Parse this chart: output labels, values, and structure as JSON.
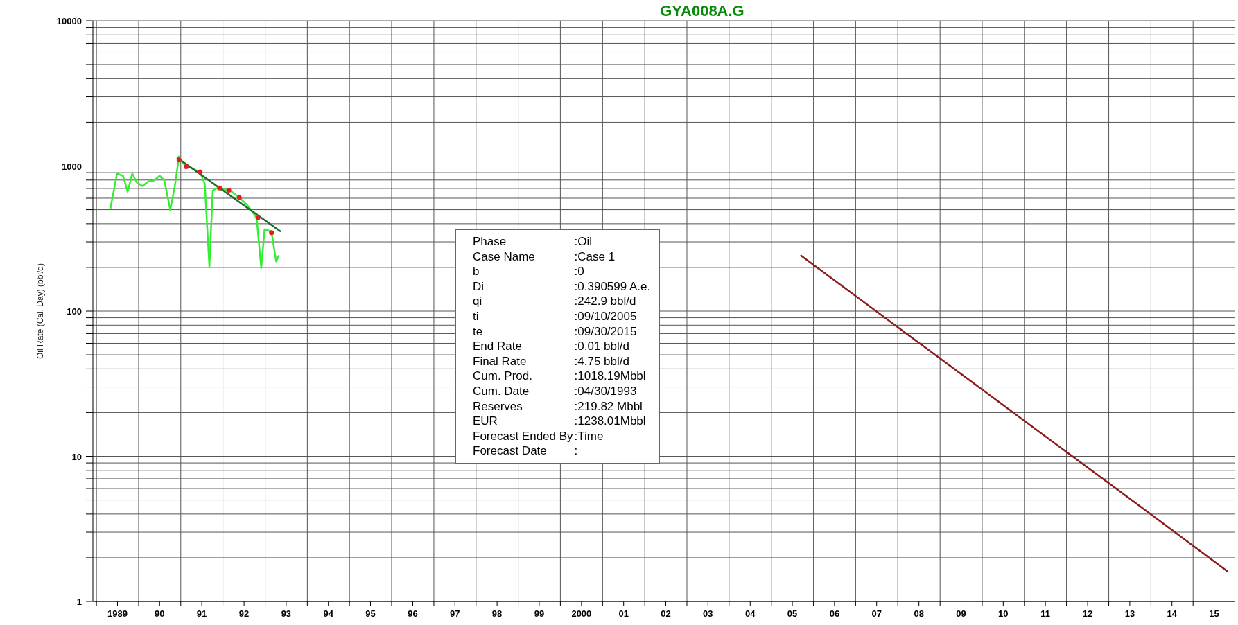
{
  "chart_data": {
    "type": "line",
    "title": "GYA008A.G",
    "ylabel": "Oil Rate (Cal. Day) (bbl/d)",
    "log": "y",
    "grid": true,
    "xlim": [
      "1988-12-01",
      "2016-01-01"
    ],
    "ylim": [
      1,
      10000
    ],
    "xticks": [
      {
        "value": "1989-01-01",
        "label": null
      },
      {
        "value": "1989-07-02",
        "label": "1989"
      },
      {
        "value": "1990-01-01",
        "label": null
      },
      {
        "value": "1990-07-02",
        "label": "90"
      },
      {
        "value": "1991-01-01",
        "label": null
      },
      {
        "value": "1991-07-02",
        "label": "91"
      },
      {
        "value": "1992-01-01",
        "label": null
      },
      {
        "value": "1992-07-02",
        "label": "92"
      },
      {
        "value": "1993-01-01",
        "label": null
      },
      {
        "value": "1993-07-02",
        "label": "93"
      },
      {
        "value": "1994-01-01",
        "label": null
      },
      {
        "value": "1994-07-02",
        "label": "94"
      },
      {
        "value": "1995-01-01",
        "label": null
      },
      {
        "value": "1995-07-02",
        "label": "95"
      },
      {
        "value": "1996-01-01",
        "label": null
      },
      {
        "value": "1996-07-02",
        "label": "96"
      },
      {
        "value": "1997-01-01",
        "label": null
      },
      {
        "value": "1997-07-02",
        "label": "97"
      },
      {
        "value": "1998-01-01",
        "label": null
      },
      {
        "value": "1998-07-02",
        "label": "98"
      },
      {
        "value": "1999-01-01",
        "label": null
      },
      {
        "value": "1999-07-02",
        "label": "99"
      },
      {
        "value": "2000-01-01",
        "label": null
      },
      {
        "value": "2000-07-02",
        "label": "2000"
      },
      {
        "value": "2001-01-01",
        "label": null
      },
      {
        "value": "2001-07-02",
        "label": "01"
      },
      {
        "value": "2002-01-01",
        "label": null
      },
      {
        "value": "2002-07-02",
        "label": "02"
      },
      {
        "value": "2003-01-01",
        "label": null
      },
      {
        "value": "2003-07-02",
        "label": "03"
      },
      {
        "value": "2004-01-01",
        "label": null
      },
      {
        "value": "2004-07-02",
        "label": "04"
      },
      {
        "value": "2005-01-01",
        "label": null
      },
      {
        "value": "2005-07-02",
        "label": "05"
      },
      {
        "value": "2006-01-01",
        "label": null
      },
      {
        "value": "2006-07-02",
        "label": "06"
      },
      {
        "value": "2007-01-01",
        "label": null
      },
      {
        "value": "2007-07-02",
        "label": "07"
      },
      {
        "value": "2008-01-01",
        "label": null
      },
      {
        "value": "2008-07-02",
        "label": "08"
      },
      {
        "value": "2009-01-01",
        "label": null
      },
      {
        "value": "2009-07-02",
        "label": "09"
      },
      {
        "value": "2010-01-01",
        "label": null
      },
      {
        "value": "2010-07-02",
        "label": "10"
      },
      {
        "value": "2011-01-01",
        "label": null
      },
      {
        "value": "2011-07-02",
        "label": "11"
      },
      {
        "value": "2012-01-01",
        "label": null
      },
      {
        "value": "2012-07-02",
        "label": "12"
      },
      {
        "value": "2013-01-01",
        "label": null
      },
      {
        "value": "2013-07-02",
        "label": "13"
      },
      {
        "value": "2014-01-01",
        "label": null
      },
      {
        "value": "2014-07-02",
        "label": "14"
      },
      {
        "value": "2015-01-01",
        "label": null
      },
      {
        "value": "2015-07-02",
        "label": "15"
      }
    ],
    "yticks": [
      1,
      {
        "value": 2,
        "label": null
      },
      {
        "value": 3,
        "label": null
      },
      {
        "value": 4,
        "label": null
      },
      {
        "value": 5,
        "label": null
      },
      {
        "value": 6,
        "label": null
      },
      {
        "value": 7,
        "label": null
      },
      {
        "value": 8,
        "label": null
      },
      {
        "value": 9,
        "label": null
      },
      10,
      {
        "value": 20,
        "label": null
      },
      {
        "value": 30,
        "label": null
      },
      {
        "value": 40,
        "label": null
      },
      {
        "value": 50,
        "label": null
      },
      {
        "value": 60,
        "label": null
      },
      {
        "value": 70,
        "label": null
      },
      {
        "value": 80,
        "label": null
      },
      {
        "value": 90,
        "label": null
      },
      100,
      {
        "value": 200,
        "label": null
      },
      {
        "value": 300,
        "label": null
      },
      {
        "value": 400,
        "label": null
      },
      {
        "value": 500,
        "label": null
      },
      {
        "value": 600,
        "label": null
      },
      {
        "value": 700,
        "label": null
      },
      {
        "value": 800,
        "label": null
      },
      {
        "value": 900,
        "label": null
      },
      1000,
      {
        "value": 2000,
        "label": null
      },
      {
        "value": 3000,
        "label": null
      },
      {
        "value": 4000,
        "label": null
      },
      {
        "value": 5000,
        "label": null
      },
      {
        "value": 6000,
        "label": null
      },
      {
        "value": 7000,
        "label": null
      },
      {
        "value": 8000,
        "label": null
      },
      {
        "value": 9000,
        "label": null
      },
      10000
    ],
    "series": [
      {
        "color": "#33ee33",
        "x": [
          "1989-05-01",
          "1989-06-28",
          "1989-08-19",
          "1989-09-28",
          "1989-11-07",
          "1989-12-17",
          "1990-02-03",
          "1990-03-26",
          "1990-05-16",
          "1990-07-02",
          "1990-08-12",
          "1990-10-02",
          "1990-11-11",
          "1990-12-17",
          "1991-01-19",
          "1991-03-30",
          "1991-06-18",
          "1991-07-28",
          "1991-09-06",
          "1991-10-05",
          "1991-11-04",
          "1991-12-14",
          "1992-02-21",
          "1992-05-22",
          "1992-08-11",
          "1992-10-19",
          "1992-11-28",
          "1992-12-27",
          "1993-02-25",
          "1993-04-06",
          "1993-04-30"
        ],
        "values": [
          507,
          887,
          855,
          664,
          887,
          768,
          728,
          781,
          796,
          855,
          796,
          497,
          728,
          1164,
          1044,
          971,
          904,
          754,
          201,
          676,
          702,
          689,
          689,
          607,
          525,
          438,
          198,
          366,
          353,
          220,
          242
        ]
      },
      {
        "type": "scatter",
        "color": "#e02020",
        "marker": "circle",
        "x": [
          "1990-12-17",
          "1991-02-17",
          "1991-06-18",
          "1991-12-03",
          "1992-02-21",
          "1992-05-22",
          "1992-10-30",
          "1993-02-25"
        ],
        "values": [
          1102,
          989,
          910,
          706,
          681,
          607,
          438,
          347
        ]
      },
      {
        "color": "#1a6b2a",
        "x": [
          "1990-11-29",
          "1993-05-16"
        ],
        "values": [
          1143,
          353
        ]
      },
      {
        "color": "#8b1a1a",
        "x": [
          "2005-09-10",
          "2008-01-01",
          "2010-01-01",
          "2012-01-01",
          "2014-01-01",
          "2015-10-31"
        ],
        "values": [
          243,
          77.5,
          28.8,
          10.7,
          3.98,
          1.6
        ]
      }
    ],
    "annotations": [
      "Phase",
      ":Oil",
      "Case Name",
      ":Case 1",
      "b",
      ":0",
      "Di",
      ":0.390599  A.e.",
      "qi",
      ":242.9 bbl/d",
      "ti",
      ":09/10/2005",
      "te",
      ":09/30/2015",
      "End Rate",
      ":0.01 bbl/d",
      "Final Rate",
      ":4.75 bbl/d",
      "Cum. Prod.",
      ":1018.19Mbbl",
      "Cum. Date",
      ":04/30/1993",
      "Reserves",
      ":219.82 Mbbl",
      "EUR",
      ":1238.01Mbbl",
      "Forecast Ended By",
      ":Time",
      "Forecast Date",
      ":"
    ]
  }
}
